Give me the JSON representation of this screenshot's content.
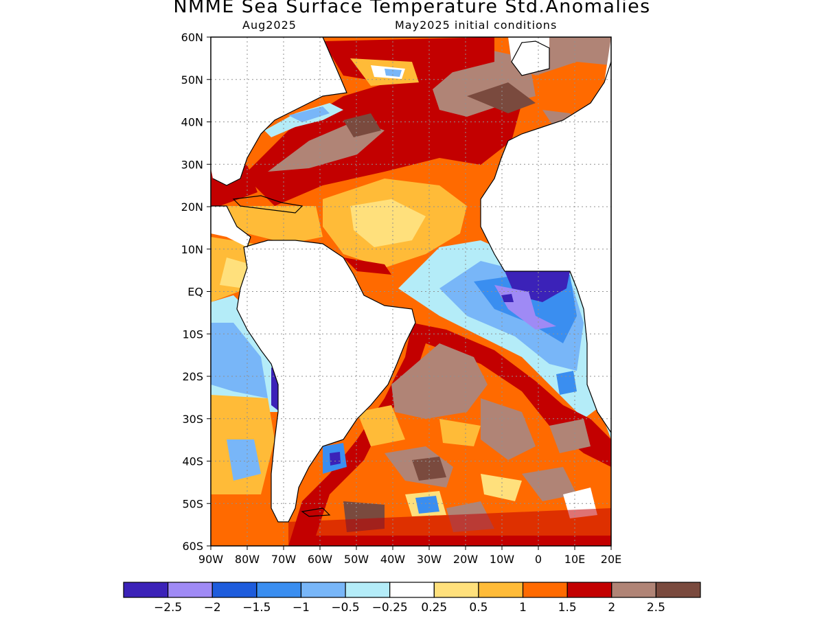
{
  "title": "NMME Sea Surface Temperature Std.Anomalies",
  "subtitle_left": "Aug2025",
  "subtitle_right": "May2025 initial conditions",
  "map": {
    "lon_range": [
      -90,
      20
    ],
    "lat_range": [
      -60,
      60
    ],
    "lon_ticks": [
      {
        "value": -90,
        "label": "90W"
      },
      {
        "value": -80,
        "label": "80W"
      },
      {
        "value": -70,
        "label": "70W"
      },
      {
        "value": -60,
        "label": "60W"
      },
      {
        "value": -50,
        "label": "50W"
      },
      {
        "value": -40,
        "label": "40W"
      },
      {
        "value": -30,
        "label": "30W"
      },
      {
        "value": -20,
        "label": "20W"
      },
      {
        "value": -10,
        "label": "10W"
      },
      {
        "value": 0,
        "label": "0"
      },
      {
        "value": 10,
        "label": "10E"
      },
      {
        "value": 20,
        "label": "20E"
      }
    ],
    "lat_ticks": [
      {
        "value": 60,
        "label": "60N"
      },
      {
        "value": 50,
        "label": "50N"
      },
      {
        "value": 40,
        "label": "40N"
      },
      {
        "value": 30,
        "label": "30N"
      },
      {
        "value": 20,
        "label": "20N"
      },
      {
        "value": 10,
        "label": "10N"
      },
      {
        "value": 0,
        "label": "EQ"
      },
      {
        "value": -10,
        "label": "10S"
      },
      {
        "value": -20,
        "label": "20S"
      },
      {
        "value": -30,
        "label": "30S"
      },
      {
        "value": -40,
        "label": "40S"
      },
      {
        "value": -50,
        "label": "50S"
      },
      {
        "value": -60,
        "label": "60S"
      }
    ]
  },
  "colorbar": {
    "colors": [
      "#3b22b8",
      "#9f8af5",
      "#1e5cdc",
      "#3a8ef0",
      "#78b6f8",
      "#b4ecf8",
      "#ffffff",
      "#ffe07c",
      "#ffbb38",
      "#ff6a00",
      "#c30000",
      "#b08476",
      "#7a4a3e"
    ],
    "labels": [
      "−2.5",
      "−2",
      "−1.5",
      "−1",
      "−0.5",
      "−0.25",
      "0.25",
      "0.5",
      "1",
      "1.5",
      "2",
      "2.5"
    ]
  }
}
